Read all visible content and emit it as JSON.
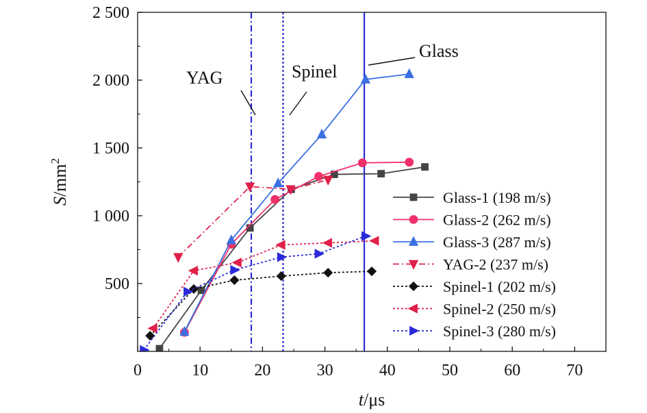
{
  "chart_data": {
    "type": "line",
    "xlabel": {
      "var": "t",
      "unit": "/μs"
    },
    "ylabel": {
      "var": "S",
      "unit": "/mm",
      "sup": "2"
    },
    "xlim": [
      0,
      75
    ],
    "ylim": [
      0,
      2500
    ],
    "x_ticks": [
      0,
      10,
      20,
      30,
      40,
      50,
      60,
      70
    ],
    "x_tick_labels": [
      "0",
      "10",
      "20",
      "30",
      "40",
      "50",
      "60",
      "70"
    ],
    "y_ticks": [
      500,
      1000,
      1500,
      2000,
      2500
    ],
    "y_tick_labels": [
      "500",
      "1 000",
      "1 500",
      "2 000",
      "2 500"
    ],
    "grid": false,
    "legend_position": "right",
    "vertical_lines": [
      {
        "x": 18.2,
        "label": "YAG",
        "color": "#2a2ad8",
        "dash": "dashdot"
      },
      {
        "x": 23.3,
        "label": "Spinel",
        "color": "#2a2ad8",
        "dash": "dotted"
      },
      {
        "x": 36.3,
        "label": "Glass",
        "color": "#2a2ad8",
        "dash": "solid"
      }
    ],
    "series": [
      {
        "name": "Glass-1 (198 m/s)",
        "color": "#444444",
        "marker": "square",
        "dash": "solid",
        "x": [
          3.5,
          10.2,
          18.0,
          24.6,
          31.5,
          39.0,
          46.0
        ],
        "y": [
          20,
          450,
          910,
          1195,
          1305,
          1310,
          1360
        ]
      },
      {
        "name": "Glass-2 (262 m/s)",
        "color": "#f0306a",
        "marker": "circle",
        "dash": "solid",
        "x": [
          7.5,
          15.0,
          22.0,
          29.0,
          36.0,
          43.5
        ],
        "y": [
          140,
          790,
          1120,
          1290,
          1390,
          1395
        ]
      },
      {
        "name": "Glass-3 (287 m/s)",
        "color": "#3a70e0",
        "marker": "triangle-up",
        "dash": "solid",
        "x": [
          7.5,
          15.0,
          22.5,
          29.5,
          36.5,
          43.5
        ],
        "y": [
          145,
          820,
          1240,
          1600,
          2005,
          2045
        ]
      },
      {
        "name": "YAG-2 (237 m/s)",
        "color": "#e0204a",
        "marker": "triangle-down",
        "dash": "dashdot",
        "x": [
          6.5,
          18.0,
          24.5,
          30.5
        ],
        "y": [
          695,
          1215,
          1195,
          1265
        ]
      },
      {
        "name": "Spinel-1 (202 m/s)",
        "color": "#111111",
        "marker": "diamond",
        "dash": "dotted",
        "x": [
          2.0,
          9.0,
          15.5,
          23.0,
          30.5,
          37.5
        ],
        "y": [
          115,
          460,
          525,
          555,
          580,
          590
        ]
      },
      {
        "name": "Spinel-2 (250 m/s)",
        "color": "#e0204a",
        "marker": "triangle-left",
        "dash": "dotted",
        "x": [
          2.5,
          9.0,
          16.0,
          23.0,
          30.5,
          38.0
        ],
        "y": [
          170,
          595,
          655,
          785,
          800,
          815
        ]
      },
      {
        "name": "Spinel-3 (280 m/s)",
        "color": "#2a2ad8",
        "marker": "triangle-right",
        "dash": "dotted",
        "x": [
          1.0,
          8.0,
          15.5,
          23.0,
          29.0,
          36.5
        ],
        "y": [
          10,
          440,
          600,
          695,
          720,
          850
        ]
      }
    ]
  }
}
